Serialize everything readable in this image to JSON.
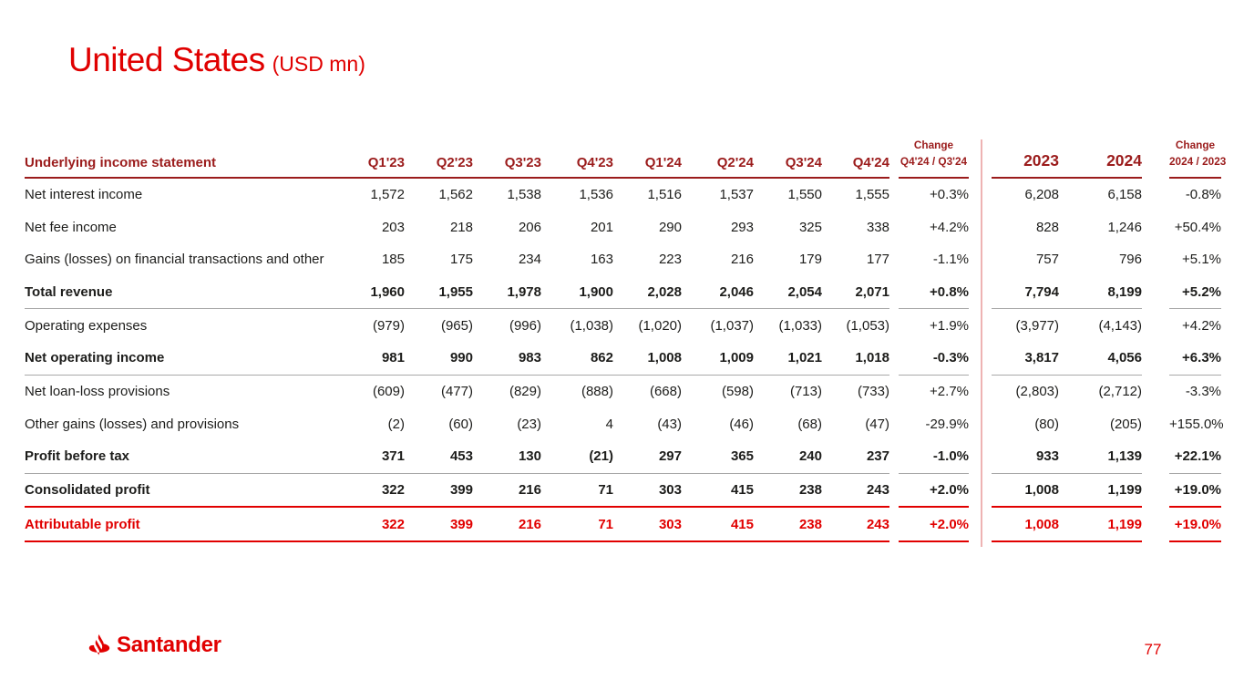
{
  "page": {
    "title": "United States",
    "title_suffix": "(USD mn)",
    "page_number": "77",
    "brand_wordmark": "Santander"
  },
  "colors": {
    "brand_red": "#e10000",
    "header_dark_red": "#9b1c1c",
    "divider_pink": "#eeb3b3",
    "rule_gray": "#a8a8a8",
    "body_text": "#1d1d1b"
  },
  "table": {
    "header": {
      "label": "Underlying income statement",
      "quarters": [
        "Q1'23",
        "Q2'23",
        "Q3'23",
        "Q4'23",
        "Q1'24",
        "Q2'24",
        "Q3'24",
        "Q4'24"
      ],
      "change_q": {
        "line1": "Change",
        "line2": "Q4'24 / Q3'24"
      },
      "years": [
        "2023",
        "2024"
      ],
      "change_y": {
        "line1": "Change",
        "line2": "2024 / 2023"
      }
    },
    "rows": [
      {
        "label": "Net interest income",
        "emphasis": "normal",
        "rule": null,
        "quarters": [
          "1,572",
          "1,562",
          "1,538",
          "1,536",
          "1,516",
          "1,537",
          "1,550",
          "1,555"
        ],
        "change_q": "+0.3%",
        "years": [
          "6,208",
          "6,158"
        ],
        "change_y": "-0.8%"
      },
      {
        "label": "Net fee income",
        "emphasis": "normal",
        "rule": null,
        "quarters": [
          "203",
          "218",
          "206",
          "201",
          "290",
          "293",
          "325",
          "338"
        ],
        "change_q": "+4.2%",
        "years": [
          "828",
          "1,246"
        ],
        "change_y": "+50.4%"
      },
      {
        "label": "Gains (losses) on financial transactions and other",
        "emphasis": "normal",
        "rule": null,
        "quarters": [
          "185",
          "175",
          "234",
          "163",
          "223",
          "216",
          "179",
          "177"
        ],
        "change_q": "-1.1%",
        "years": [
          "757",
          "796"
        ],
        "change_y": "+5.1%"
      },
      {
        "label": "Total revenue",
        "emphasis": "bold",
        "rule": "gray",
        "quarters": [
          "1,960",
          "1,955",
          "1,978",
          "1,900",
          "2,028",
          "2,046",
          "2,054",
          "2,071"
        ],
        "change_q": "+0.8%",
        "years": [
          "7,794",
          "8,199"
        ],
        "change_y": "+5.2%"
      },
      {
        "label": "Operating expenses",
        "emphasis": "normal",
        "rule": null,
        "quarters": [
          "(979)",
          "(965)",
          "(996)",
          "(1,038)",
          "(1,020)",
          "(1,037)",
          "(1,033)",
          "(1,053)"
        ],
        "change_q": "+1.9%",
        "years": [
          "(3,977)",
          "(4,143)"
        ],
        "change_y": "+4.2%"
      },
      {
        "label": "Net operating income",
        "emphasis": "bold",
        "rule": "gray",
        "quarters": [
          "981",
          "990",
          "983",
          "862",
          "1,008",
          "1,009",
          "1,021",
          "1,018"
        ],
        "change_q": "-0.3%",
        "years": [
          "3,817",
          "4,056"
        ],
        "change_y": "+6.3%"
      },
      {
        "label": "Net loan-loss provisions",
        "emphasis": "normal",
        "rule": null,
        "quarters": [
          "(609)",
          "(477)",
          "(829)",
          "(888)",
          "(668)",
          "(598)",
          "(713)",
          "(733)"
        ],
        "change_q": "+2.7%",
        "years": [
          "(2,803)",
          "(2,712)"
        ],
        "change_y": "-3.3%"
      },
      {
        "label": "Other gains (losses) and provisions",
        "emphasis": "normal",
        "rule": null,
        "quarters": [
          "(2)",
          "(60)",
          "(23)",
          "4",
          "(43)",
          "(46)",
          "(68)",
          "(47)"
        ],
        "change_q": "-29.9%",
        "years": [
          "(80)",
          "(205)"
        ],
        "change_y": "+155.0%"
      },
      {
        "label": "Profit before tax",
        "emphasis": "bold",
        "rule": "gray",
        "quarters": [
          "371",
          "453",
          "130",
          "(21)",
          "297",
          "365",
          "240",
          "237"
        ],
        "change_q": "-1.0%",
        "years": [
          "933",
          "1,139"
        ],
        "change_y": "+22.1%"
      },
      {
        "label": "Consolidated profit",
        "emphasis": "bold",
        "rule": "red",
        "quarters": [
          "322",
          "399",
          "216",
          "71",
          "303",
          "415",
          "238",
          "243"
        ],
        "change_q": "+2.0%",
        "years": [
          "1,008",
          "1,199"
        ],
        "change_y": "+19.0%"
      },
      {
        "label": "Attributable profit",
        "emphasis": "bold red",
        "rule": "red",
        "quarters": [
          "322",
          "399",
          "216",
          "71",
          "303",
          "415",
          "238",
          "243"
        ],
        "change_q": "+2.0%",
        "years": [
          "1,008",
          "1,199"
        ],
        "change_y": "+19.0%"
      }
    ]
  }
}
